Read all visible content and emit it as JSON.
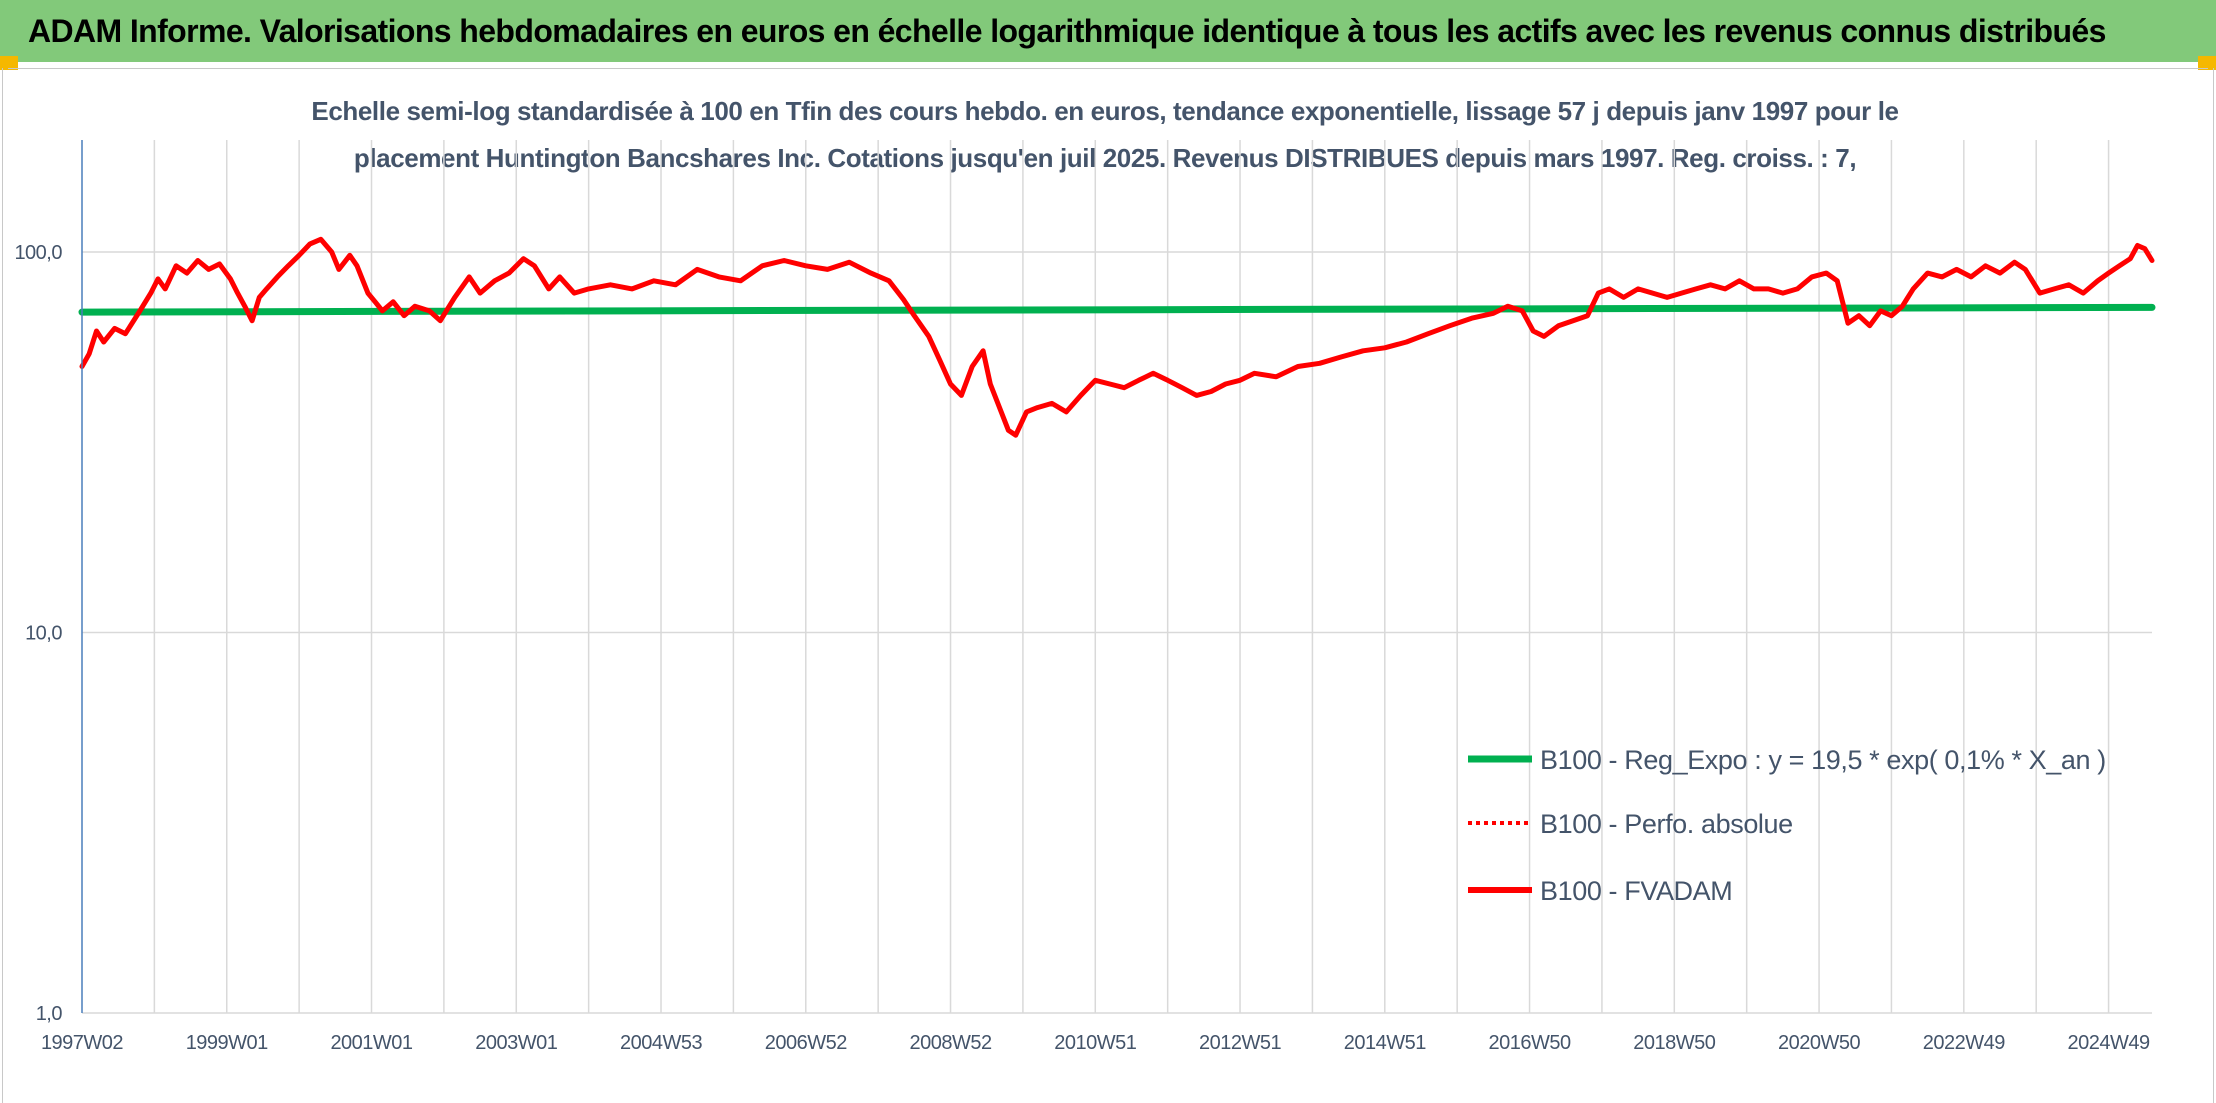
{
  "header": {
    "title": "ADAM Informe. Valorisations hebdomadaires en euros en échelle logarithmique identique à tous les actifs avec les revenus connus distribués"
  },
  "colors": {
    "header_bg": "#82c97a",
    "accent_corner": "#f5b800",
    "regression": "#00b050",
    "fvadam": "#ff0000",
    "text": "#44546a",
    "grid": "#d9d9d9"
  },
  "chart_data": {
    "type": "line",
    "title_line1": "Echelle semi-log standardisée à 100 en Tfin des cours hebdo. en euros, tendance exponentielle, lissage 57 j depuis janv 1997 pour le",
    "title_line2": "placement Huntington Bancshares Inc. Cotations jusqu'en juil 2025. Revenus DISTRIBUES depuis mars 1997. Reg. croiss. : 7,",
    "y_scale": "log",
    "ylim": [
      1,
      200
    ],
    "y_ticks": [
      {
        "value": 1,
        "label": "1,0"
      },
      {
        "value": 10,
        "label": "10,0"
      },
      {
        "value": 100,
        "label": "100,0"
      }
    ],
    "x_range": [
      1997.0,
      2025.6
    ],
    "x_ticks": [
      {
        "x": 1997.0,
        "label": "1997W02"
      },
      {
        "x": 1999.0,
        "label": "1999W01"
      },
      {
        "x": 2001.0,
        "label": "2001W01"
      },
      {
        "x": 2003.0,
        "label": "2003W01"
      },
      {
        "x": 2005.0,
        "label": "2004W53"
      },
      {
        "x": 2007.0,
        "label": "2006W52"
      },
      {
        "x": 2009.0,
        "label": "2008W52"
      },
      {
        "x": 2011.0,
        "label": "2010W51"
      },
      {
        "x": 2013.0,
        "label": "2012W51"
      },
      {
        "x": 2015.0,
        "label": "2014W51"
      },
      {
        "x": 2017.0,
        "label": "2016W50"
      },
      {
        "x": 2019.0,
        "label": "2018W50"
      },
      {
        "x": 2021.0,
        "label": "2020W50"
      },
      {
        "x": 2023.0,
        "label": "2022W49"
      },
      {
        "x": 2025.0,
        "label": "2024W49"
      }
    ],
    "grid": true,
    "legend_position": "bottom-right",
    "series": [
      {
        "name": "B100 - Reg_Expo : y = 19,5 * exp( 0,1% *  X_an )",
        "style": "solid-thick",
        "color": "#00b050",
        "points": [
          [
            1997.0,
            69.5
          ],
          [
            2025.6,
            71.5
          ]
        ]
      },
      {
        "name": "B100 - Perfo. absolue",
        "style": "dotted",
        "color": "#ff0000",
        "points": []
      },
      {
        "name": "B100 - FVADAM",
        "style": "solid",
        "color": "#ff0000",
        "points": [
          [
            1997.0,
            50
          ],
          [
            1997.1,
            54
          ],
          [
            1997.2,
            62
          ],
          [
            1997.3,
            58
          ],
          [
            1997.45,
            63
          ],
          [
            1997.6,
            61
          ],
          [
            1997.8,
            70
          ],
          [
            1997.95,
            78
          ],
          [
            1998.05,
            85
          ],
          [
            1998.15,
            80
          ],
          [
            1998.3,
            92
          ],
          [
            1998.45,
            88
          ],
          [
            1998.6,
            95
          ],
          [
            1998.75,
            90
          ],
          [
            1998.9,
            93
          ],
          [
            1999.05,
            85
          ],
          [
            1999.15,
            78
          ],
          [
            1999.25,
            72
          ],
          [
            1999.35,
            66
          ],
          [
            1999.45,
            76
          ],
          [
            1999.55,
            80
          ],
          [
            1999.7,
            86
          ],
          [
            1999.85,
            92
          ],
          [
            2000.0,
            98
          ],
          [
            2000.15,
            105
          ],
          [
            2000.3,
            108
          ],
          [
            2000.45,
            100
          ],
          [
            2000.55,
            90
          ],
          [
            2000.7,
            98
          ],
          [
            2000.8,
            92
          ],
          [
            2000.95,
            78
          ],
          [
            2001.05,
            74
          ],
          [
            2001.15,
            70
          ],
          [
            2001.3,
            74
          ],
          [
            2001.45,
            68
          ],
          [
            2001.6,
            72
          ],
          [
            2001.8,
            70
          ],
          [
            2001.95,
            66
          ],
          [
            2002.15,
            76
          ],
          [
            2002.35,
            86
          ],
          [
            2002.5,
            78
          ],
          [
            2002.7,
            84
          ],
          [
            2002.9,
            88
          ],
          [
            2003.1,
            96
          ],
          [
            2003.25,
            92
          ],
          [
            2003.45,
            80
          ],
          [
            2003.6,
            86
          ],
          [
            2003.8,
            78
          ],
          [
            2004.0,
            80
          ],
          [
            2004.3,
            82
          ],
          [
            2004.6,
            80
          ],
          [
            2004.9,
            84
          ],
          [
            2005.2,
            82
          ],
          [
            2005.5,
            90
          ],
          [
            2005.8,
            86
          ],
          [
            2006.1,
            84
          ],
          [
            2006.4,
            92
          ],
          [
            2006.7,
            95
          ],
          [
            2007.0,
            92
          ],
          [
            2007.3,
            90
          ],
          [
            2007.6,
            94
          ],
          [
            2007.9,
            88
          ],
          [
            2008.15,
            84
          ],
          [
            2008.35,
            75
          ],
          [
            2008.5,
            68
          ],
          [
            2008.7,
            60
          ],
          [
            2008.85,
            52
          ],
          [
            2009.0,
            45
          ],
          [
            2009.15,
            42
          ],
          [
            2009.3,
            50
          ],
          [
            2009.45,
            55
          ],
          [
            2009.55,
            45
          ],
          [
            2009.7,
            38
          ],
          [
            2009.8,
            34
          ],
          [
            2009.9,
            33
          ],
          [
            2010.05,
            38
          ],
          [
            2010.2,
            39
          ],
          [
            2010.4,
            40
          ],
          [
            2010.6,
            38
          ],
          [
            2010.8,
            42
          ],
          [
            2011.0,
            46
          ],
          [
            2011.2,
            45
          ],
          [
            2011.4,
            44
          ],
          [
            2011.6,
            46
          ],
          [
            2011.8,
            48
          ],
          [
            2012.0,
            46
          ],
          [
            2012.2,
            44
          ],
          [
            2012.4,
            42
          ],
          [
            2012.6,
            43
          ],
          [
            2012.8,
            45
          ],
          [
            2013.0,
            46
          ],
          [
            2013.2,
            48
          ],
          [
            2013.5,
            47
          ],
          [
            2013.8,
            50
          ],
          [
            2014.1,
            51
          ],
          [
            2014.4,
            53
          ],
          [
            2014.7,
            55
          ],
          [
            2015.0,
            56
          ],
          [
            2015.3,
            58
          ],
          [
            2015.6,
            61
          ],
          [
            2015.9,
            64
          ],
          [
            2016.2,
            67
          ],
          [
            2016.5,
            69
          ],
          [
            2016.7,
            72
          ],
          [
            2016.9,
            70
          ],
          [
            2017.05,
            62
          ],
          [
            2017.2,
            60
          ],
          [
            2017.4,
            64
          ],
          [
            2017.6,
            66
          ],
          [
            2017.8,
            68
          ],
          [
            2017.95,
            78
          ],
          [
            2018.1,
            80
          ],
          [
            2018.3,
            76
          ],
          [
            2018.5,
            80
          ],
          [
            2018.7,
            78
          ],
          [
            2018.9,
            76
          ],
          [
            2019.1,
            78
          ],
          [
            2019.3,
            80
          ],
          [
            2019.5,
            82
          ],
          [
            2019.7,
            80
          ],
          [
            2019.9,
            84
          ],
          [
            2020.1,
            80
          ],
          [
            2020.3,
            80
          ],
          [
            2020.5,
            78
          ],
          [
            2020.7,
            80
          ],
          [
            2020.9,
            86
          ],
          [
            2021.1,
            88
          ],
          [
            2021.25,
            84
          ],
          [
            2021.4,
            65
          ],
          [
            2021.55,
            68
          ],
          [
            2021.7,
            64
          ],
          [
            2021.85,
            70
          ],
          [
            2022.0,
            68
          ],
          [
            2022.15,
            72
          ],
          [
            2022.3,
            80
          ],
          [
            2022.5,
            88
          ],
          [
            2022.7,
            86
          ],
          [
            2022.9,
            90
          ],
          [
            2023.1,
            86
          ],
          [
            2023.3,
            92
          ],
          [
            2023.5,
            88
          ],
          [
            2023.7,
            94
          ],
          [
            2023.85,
            90
          ],
          [
            2024.05,
            78
          ],
          [
            2024.25,
            80
          ],
          [
            2024.45,
            82
          ],
          [
            2024.65,
            78
          ],
          [
            2024.85,
            84
          ],
          [
            2025.0,
            88
          ],
          [
            2025.15,
            92
          ],
          [
            2025.3,
            96
          ],
          [
            2025.4,
            104
          ],
          [
            2025.5,
            102
          ],
          [
            2025.6,
            95
          ]
        ]
      }
    ]
  }
}
